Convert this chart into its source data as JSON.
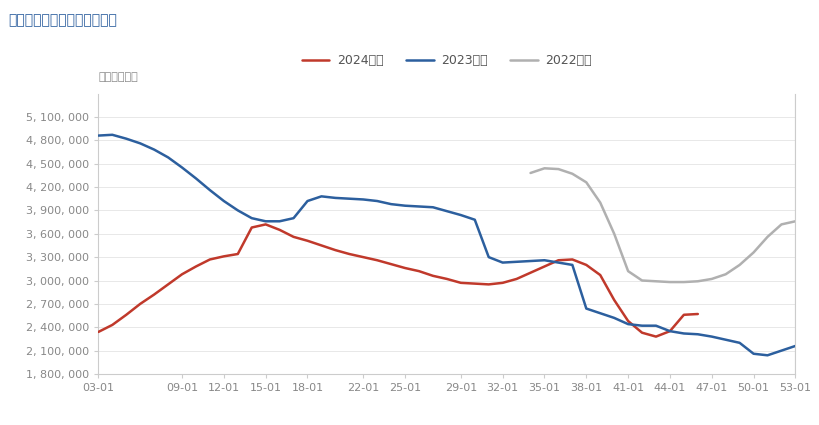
{
  "title": "原木：港口库存：中国（周）",
  "unit_label": "单位：立方米",
  "legend": [
    "2024年度",
    "2023年度",
    "2022年度"
  ],
  "colors": [
    "#c0392b",
    "#2c5f9e",
    "#b0b0b0"
  ],
  "linewidths": [
    1.8,
    1.8,
    1.8
  ],
  "ylim": [
    1800000,
    5400000
  ],
  "yticks": [
    1800000,
    2100000,
    2400000,
    2700000,
    3000000,
    3300000,
    3600000,
    3900000,
    4200000,
    4500000,
    4800000,
    5100000
  ],
  "xtick_positions": [
    3,
    9,
    12,
    15,
    18,
    22,
    25,
    29,
    32,
    35,
    38,
    41,
    44,
    47,
    50,
    53
  ],
  "xtick_labels": [
    "03-01",
    "09-01",
    "12-01",
    "15-01",
    "18-01",
    "22-01",
    "25-01",
    "29-01",
    "32-01",
    "35-01",
    "38-01",
    "41-01",
    "44-01",
    "47-01",
    "50-01",
    "53-01"
  ],
  "xlim": [
    3,
    53
  ],
  "x_2024": [
    3,
    4,
    5,
    6,
    7,
    8,
    9,
    10,
    11,
    12,
    13,
    14,
    15,
    16,
    17,
    18,
    19,
    20,
    21,
    22,
    23,
    24,
    25,
    26,
    27,
    28,
    29,
    30,
    31,
    32,
    33,
    34,
    35,
    36,
    37,
    38,
    39,
    40,
    41,
    42,
    43,
    44,
    45,
    46
  ],
  "y_2024": [
    2340000,
    2430000,
    2560000,
    2700000,
    2820000,
    2950000,
    3080000,
    3180000,
    3270000,
    3310000,
    3340000,
    3680000,
    3720000,
    3650000,
    3560000,
    3510000,
    3450000,
    3390000,
    3340000,
    3300000,
    3260000,
    3210000,
    3160000,
    3120000,
    3060000,
    3020000,
    2970000,
    2960000,
    2950000,
    2970000,
    3020000,
    3100000,
    3180000,
    3260000,
    3270000,
    3200000,
    3070000,
    2750000,
    2480000,
    2330000,
    2280000,
    2350000,
    2560000,
    2570000
  ],
  "x_2023": [
    3,
    4,
    5,
    6,
    7,
    8,
    9,
    10,
    11,
    12,
    13,
    14,
    15,
    16,
    17,
    18,
    19,
    20,
    21,
    22,
    23,
    24,
    25,
    26,
    27,
    28,
    29,
    30,
    31,
    32,
    33,
    34,
    35,
    36,
    37,
    38,
    39,
    40,
    41,
    42,
    43,
    44,
    45,
    46,
    47,
    48,
    49,
    50,
    51,
    52,
    53
  ],
  "y_2023": [
    4860000,
    4870000,
    4820000,
    4760000,
    4680000,
    4580000,
    4450000,
    4310000,
    4160000,
    4020000,
    3900000,
    3800000,
    3760000,
    3760000,
    3800000,
    4020000,
    4080000,
    4060000,
    4050000,
    4040000,
    4020000,
    3980000,
    3960000,
    3950000,
    3940000,
    3890000,
    3840000,
    3780000,
    3300000,
    3230000,
    3240000,
    3250000,
    3260000,
    3230000,
    3200000,
    2640000,
    2580000,
    2520000,
    2440000,
    2420000,
    2420000,
    2350000,
    2320000,
    2310000,
    2280000,
    2240000,
    2200000,
    2060000,
    2040000,
    2100000,
    2160000
  ],
  "x_2022": [
    34,
    35,
    36,
    37,
    38,
    39,
    40,
    41,
    42,
    43,
    44,
    45,
    46,
    47,
    48,
    49,
    50,
    51,
    52,
    53
  ],
  "y_2022": [
    4380000,
    4440000,
    4430000,
    4370000,
    4260000,
    4000000,
    3600000,
    3120000,
    3000000,
    2990000,
    2980000,
    2980000,
    2990000,
    3020000,
    3080000,
    3200000,
    3360000,
    3560000,
    3720000,
    3760000
  ],
  "title_color": "#2c5f9e",
  "title_fontsize": 10,
  "unit_fontsize": 8,
  "tick_fontsize": 8,
  "legend_fontsize": 9,
  "bg_color": "#ffffff",
  "grid_color": "#e8e8e8",
  "spine_color": "#cccccc",
  "tick_label_color": "#888888"
}
